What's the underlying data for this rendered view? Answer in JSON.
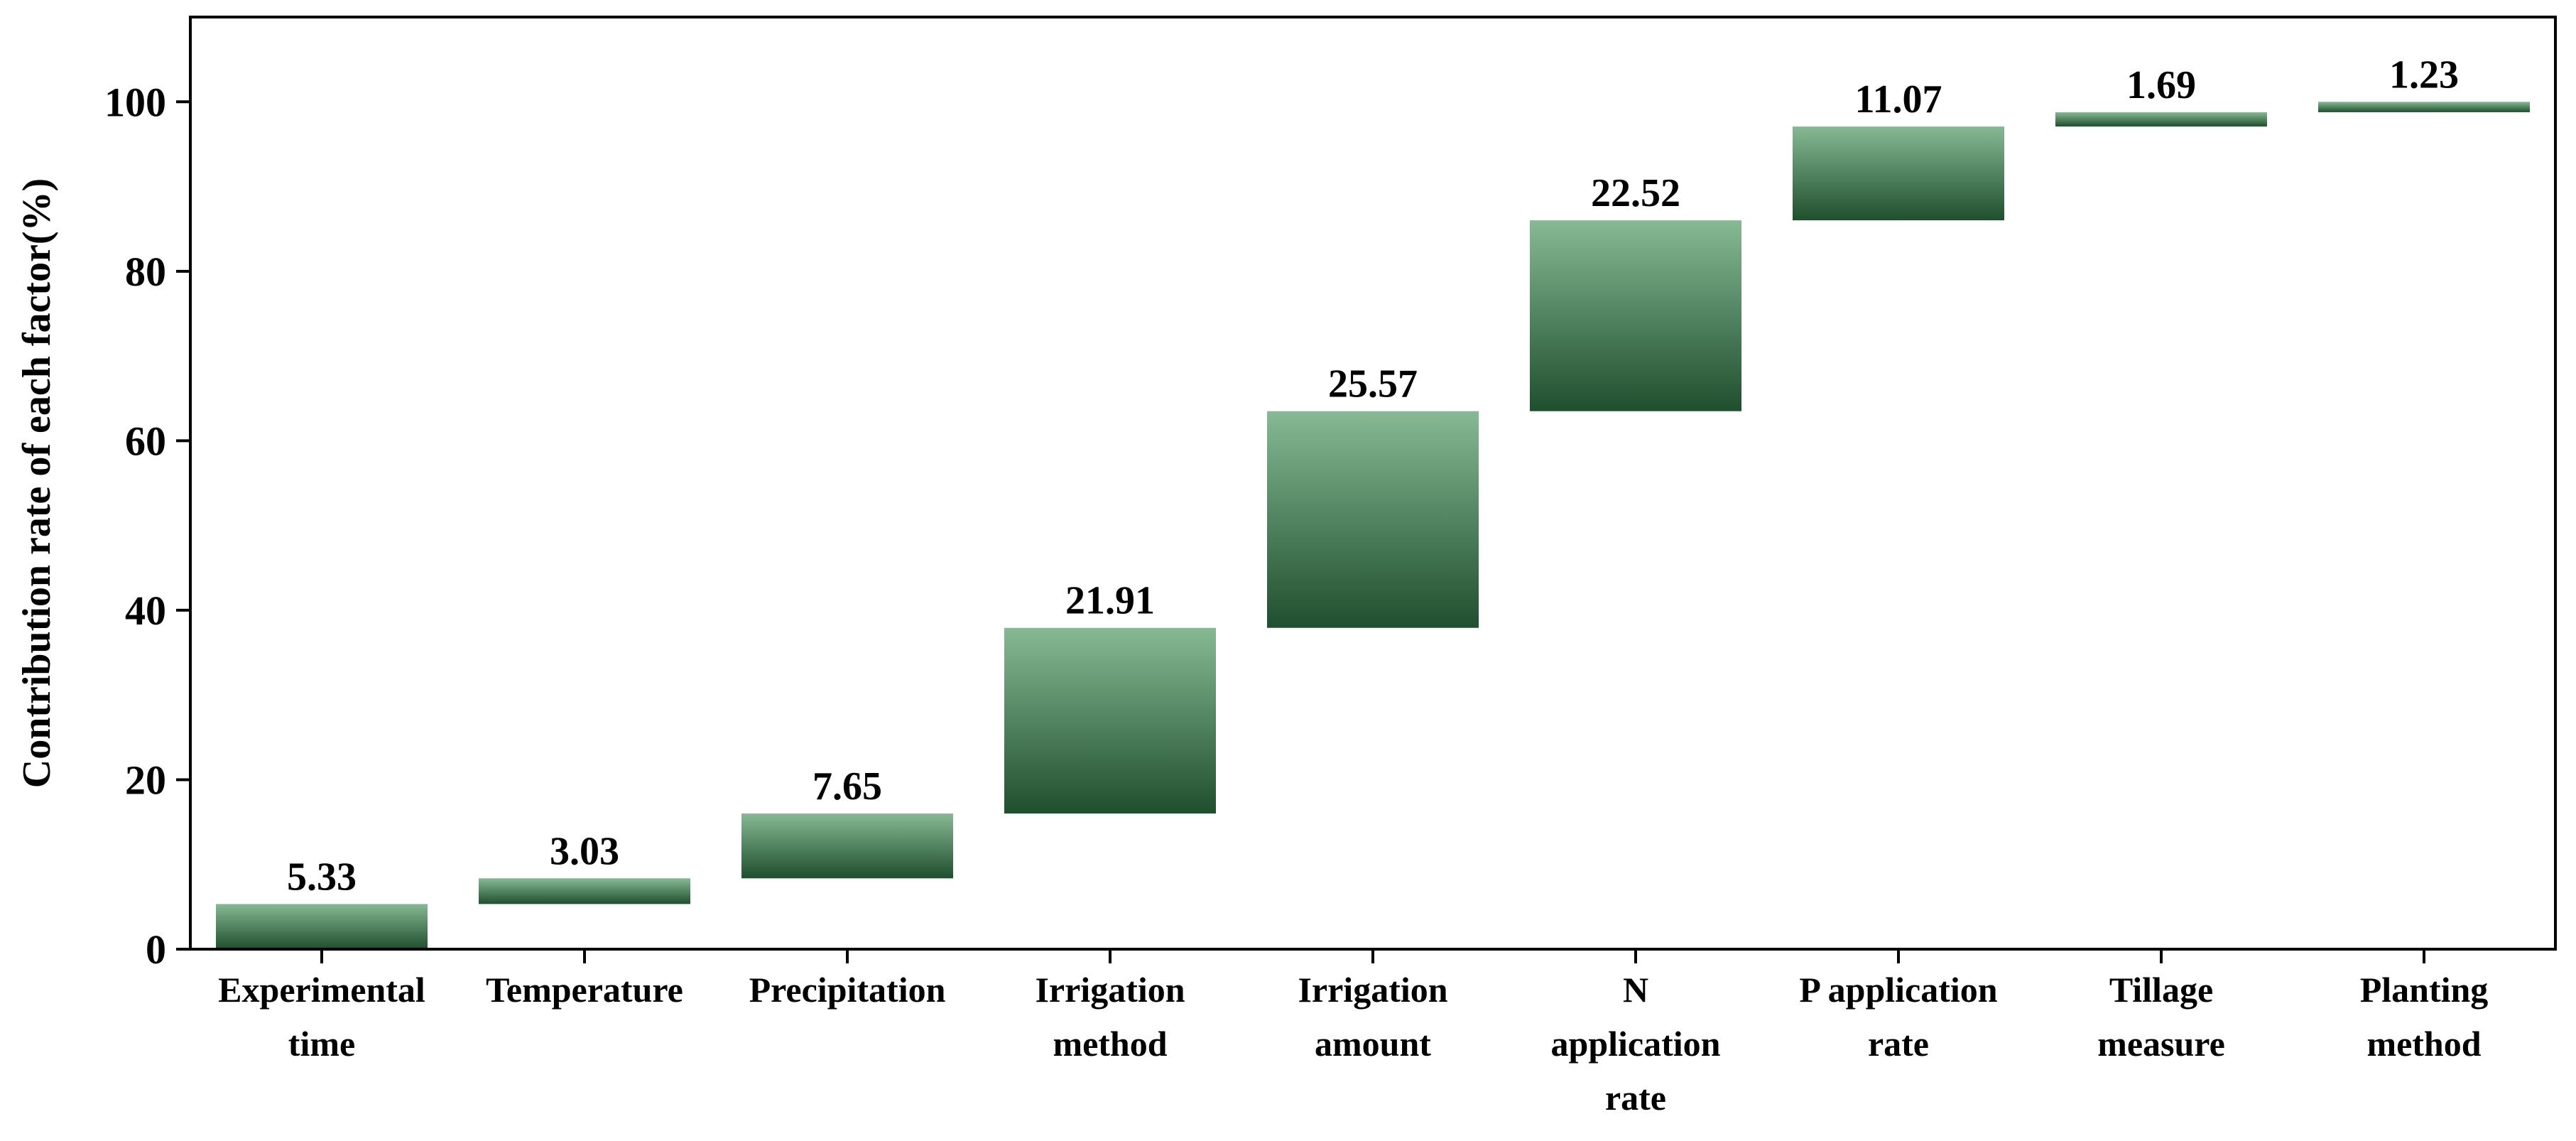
{
  "chart_data": {
    "type": "bar",
    "subtype": "waterfall",
    "title": "",
    "xlabel": "",
    "ylabel": "Contribution rate of each factor(%)",
    "ylim": [
      0,
      110
    ],
    "yticks": [
      0,
      20,
      40,
      60,
      80,
      100
    ],
    "grid": false,
    "categories": [
      [
        "Experimental",
        "time"
      ],
      [
        "Temperature"
      ],
      [
        "Precipitation"
      ],
      [
        "Irrigation",
        "method"
      ],
      [
        "Irrigation",
        "amount"
      ],
      [
        "N",
        "application",
        "rate"
      ],
      [
        "P application",
        "rate"
      ],
      [
        "Tillage",
        "measure"
      ],
      [
        "Planting",
        "method"
      ]
    ],
    "values": [
      5.33,
      3.03,
      7.65,
      21.91,
      25.57,
      22.52,
      11.07,
      1.69,
      1.23
    ],
    "value_labels": [
      "5.33",
      "3.03",
      "7.65",
      "21.91",
      "25.57",
      "22.52",
      "11.07",
      "1.69",
      "1.23"
    ],
    "colors": {
      "bar_top": "#86b994",
      "bar_bottom": "#1f4f2e",
      "axis": "#000000"
    }
  }
}
